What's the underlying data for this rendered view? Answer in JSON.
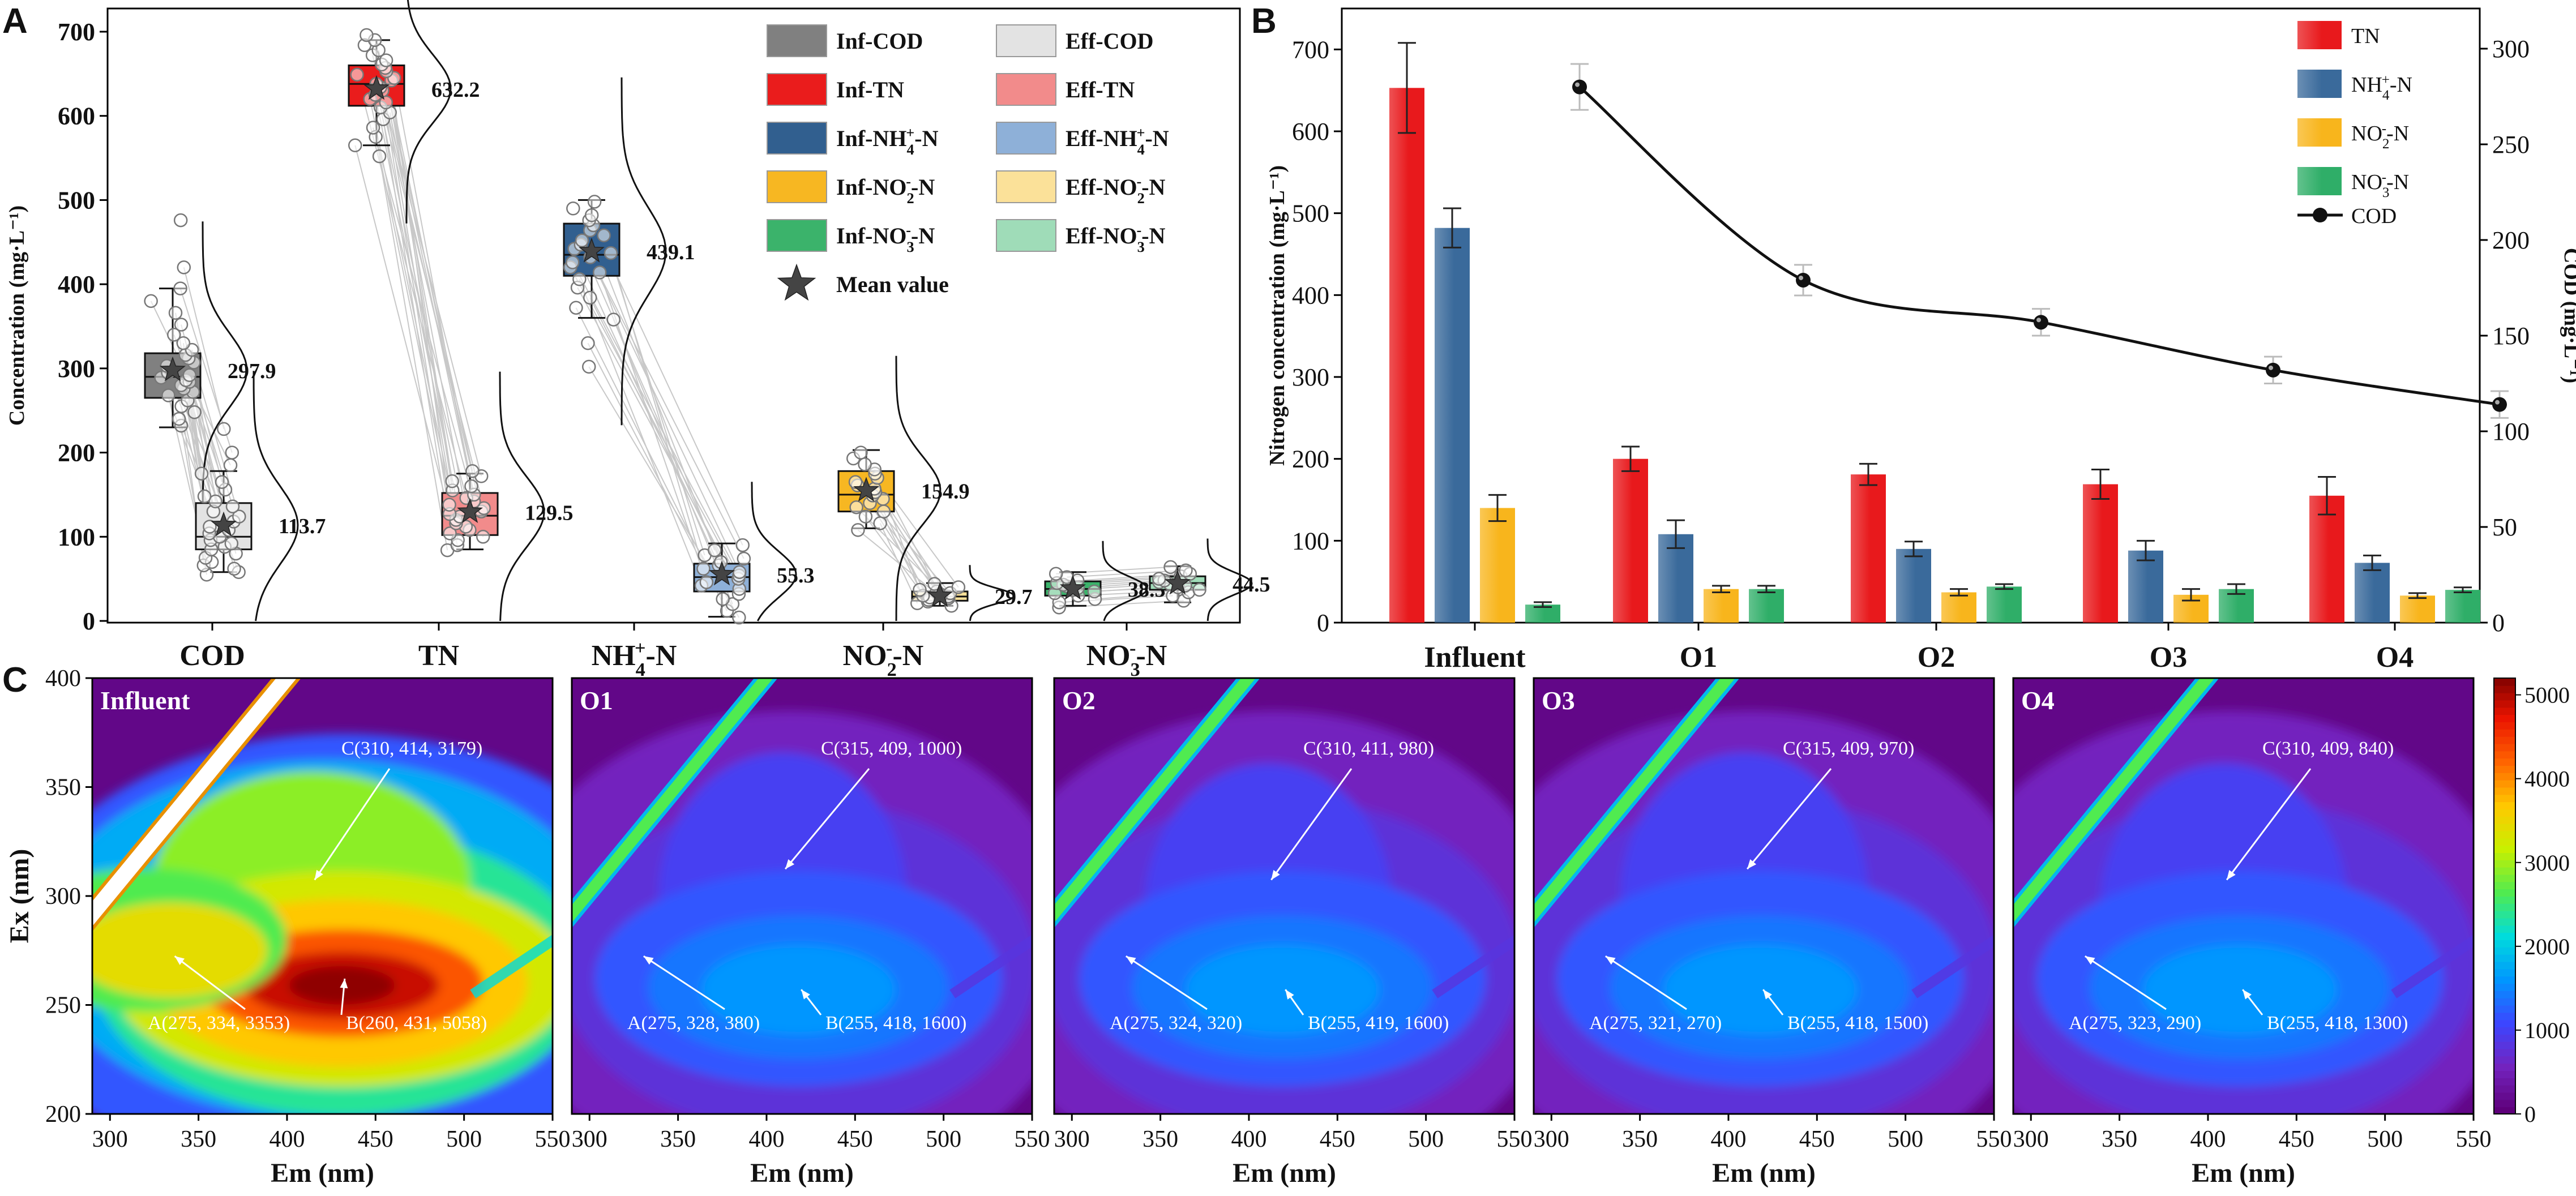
{
  "figure_labels": {
    "a": "A",
    "b": "B",
    "c": "C"
  },
  "chart_data": [
    {
      "type": "box",
      "panel": "A",
      "ylabel": "Concentration (mg·L⁻¹)",
      "ylim": [
        0,
        700
      ],
      "yticks": [
        0,
        100,
        200,
        300,
        400,
        500,
        600,
        700
      ],
      "groups": [
        "COD",
        "TN",
        "NH4+-N",
        "NO2--N",
        "NO3--N"
      ],
      "group_labels": [
        {
          "base": "COD",
          "sup": "",
          "sub": "",
          "tail": ""
        },
        {
          "base": "TN",
          "sup": "",
          "sub": "",
          "tail": ""
        },
        {
          "base": "NH",
          "sub": "4",
          "sup": "+",
          "tail": "-N"
        },
        {
          "base": "NO",
          "sub": "2",
          "sup": "-",
          "tail": "-N"
        },
        {
          "base": "NO",
          "sub": "3",
          "sup": "-",
          "tail": "-N"
        }
      ],
      "boxes": [
        {
          "name": "Inf-COD",
          "group": "COD",
          "color": "#808080",
          "q1": 265,
          "median": 290,
          "q3": 318,
          "whisker_low": 230,
          "whisker_high": 395,
          "mean": 297.9,
          "mean_label": "297.9",
          "points": [
            232,
            240,
            248,
            255,
            262,
            268,
            272,
            276,
            280,
            284,
            286,
            289,
            292,
            295,
            298,
            303,
            307,
            312,
            316,
            322,
            330,
            340,
            352,
            366,
            380,
            395,
            420,
            476
          ]
        },
        {
          "name": "Eff-COD",
          "group": "COD",
          "color": "#e3e3e3",
          "q1": 85,
          "median": 100,
          "q3": 140,
          "whisker_low": 58,
          "whisker_high": 178,
          "mean": 113.7,
          "mean_label": "113.7",
          "points": [
            55,
            58,
            62,
            66,
            70,
            75,
            80,
            85,
            88,
            92,
            96,
            100,
            104,
            108,
            112,
            118,
            124,
            130,
            136,
            142,
            148,
            156,
            165,
            175,
            185,
            200,
            228
          ]
        },
        {
          "name": "Inf-TN",
          "group": "TN",
          "color": "#ea1c1c",
          "q1": 612,
          "median": 638,
          "q3": 660,
          "whisker_low": 565,
          "whisker_high": 690,
          "mean": 632.2,
          "mean_label": "632.2",
          "points": [
            552,
            565,
            575,
            586,
            596,
            604,
            610,
            616,
            620,
            625,
            630,
            634,
            638,
            642,
            645,
            649,
            653,
            657,
            661,
            666,
            672,
            678,
            684,
            690,
            696
          ]
        },
        {
          "name": "Eff-TN",
          "group": "TN",
          "color": "#f28b8b",
          "q1": 102,
          "median": 125,
          "q3": 152,
          "whisker_low": 85,
          "whisker_high": 175,
          "mean": 129.5,
          "mean_label": "129.5",
          "points": [
            84,
            90,
            96,
            100,
            104,
            108,
            112,
            116,
            120,
            124,
            127,
            130,
            134,
            138,
            142,
            146,
            150,
            155,
            160,
            166,
            172,
            178
          ]
        },
        {
          "name": "Inf-NH4+-N",
          "group": "NH4+-N",
          "color": "#315f8f",
          "q1": 410,
          "median": 435,
          "q3": 472,
          "whisker_low": 360,
          "whisker_high": 500,
          "mean": 439.1,
          "mean_label": "439.1",
          "points": [
            302,
            330,
            358,
            372,
            384,
            396,
            406,
            414,
            420,
            426,
            432,
            437,
            442,
            447,
            452,
            458,
            464,
            470,
            476,
            482,
            490,
            498
          ]
        },
        {
          "name": "Eff-NH4+-N",
          "group": "NH4+-N",
          "color": "#8eb0d8",
          "q1": 35,
          "median": 52,
          "q3": 68,
          "whisker_low": 5,
          "whisker_high": 92,
          "mean": 55.3,
          "mean_label": "55.3",
          "points": [
            4,
            12,
            20,
            26,
            32,
            38,
            42,
            46,
            50,
            54,
            58,
            62,
            66,
            70,
            74,
            78,
            84,
            90
          ]
        },
        {
          "name": "Inf-NO2--N",
          "group": "NO2--N",
          "color": "#f7b722",
          "q1": 130,
          "median": 150,
          "q3": 178,
          "whisker_low": 110,
          "whisker_high": 203,
          "mean": 154.9,
          "mean_label": "154.9",
          "points": [
            108,
            116,
            124,
            130,
            135,
            140,
            145,
            149,
            153,
            157,
            161,
            165,
            170,
            175,
            180,
            186,
            193,
            200
          ]
        },
        {
          "name": "Eff-NO2--N",
          "group": "NO2--N",
          "color": "#fbe199",
          "q1": 24,
          "median": 29,
          "q3": 35,
          "whisker_low": 18,
          "whisker_high": 45,
          "mean": 29.7,
          "mean_label": "29.7",
          "points": [
            18,
            21,
            23,
            25,
            27,
            28,
            29,
            30,
            31,
            32,
            33,
            35,
            37,
            40,
            44
          ]
        },
        {
          "name": "Inf-NO3--N",
          "group": "NO3--N",
          "color": "#3bb36b",
          "q1": 30,
          "median": 38,
          "q3": 47,
          "whisker_low": 18,
          "whisker_high": 58,
          "mean": 38.3,
          "mean_label": "38.3",
          "points": [
            16,
            22,
            26,
            30,
            33,
            35,
            37,
            39,
            41,
            43,
            45,
            48,
            52,
            56
          ]
        },
        {
          "name": "Eff-NO3--N",
          "group": "NO3--N",
          "color": "#9fdcb8",
          "q1": 37,
          "median": 45,
          "q3": 53,
          "whisker_low": 22,
          "whisker_high": 65,
          "mean": 44.5,
          "mean_label": "44.5",
          "points": [
            24,
            30,
            34,
            37,
            40,
            42,
            44,
            46,
            48,
            50,
            53,
            56,
            60,
            64
          ]
        }
      ],
      "legend": [
        {
          "color": "#808080",
          "base": "Inf-COD",
          "sub": "",
          "sup": "",
          "tail": ""
        },
        {
          "color": "#e3e3e3",
          "base": "Eff-COD",
          "sub": "",
          "sup": "",
          "tail": ""
        },
        {
          "color": "#ea1c1c",
          "base": "Inf-TN",
          "sub": "",
          "sup": "",
          "tail": ""
        },
        {
          "color": "#f28b8b",
          "base": "Eff-TN",
          "sub": "",
          "sup": "",
          "tail": ""
        },
        {
          "color": "#315f8f",
          "base": "Inf-NH",
          "sub": "4",
          "sup": "+",
          "tail": "-N"
        },
        {
          "color": "#8eb0d8",
          "base": "Eff-NH",
          "sub": "4",
          "sup": "+",
          "tail": "-N"
        },
        {
          "color": "#f7b722",
          "base": "Inf-NO",
          "sub": "2",
          "sup": "-",
          "tail": "-N"
        },
        {
          "color": "#fbe199",
          "base": "Eff-NO",
          "sub": "2",
          "sup": "-",
          "tail": "-N"
        },
        {
          "color": "#3bb36b",
          "base": "Inf-NO",
          "sub": "3",
          "sup": "-",
          "tail": "-N"
        },
        {
          "color": "#9fdcb8",
          "base": "Eff-NO",
          "sub": "3",
          "sup": "-",
          "tail": "-N"
        }
      ],
      "legend_mean": "Mean value"
    },
    {
      "type": "bar+line",
      "panel": "B",
      "categories": [
        "Influent",
        "O1",
        "O2",
        "O3",
        "O4"
      ],
      "ylabel_left": "Nitrogen concentration (mg·L⁻¹)",
      "ylabel_right": "COD (mg·L⁻¹)",
      "ylim_left": [
        0,
        750
      ],
      "yticks_left": [
        0,
        100,
        200,
        300,
        400,
        500,
        600,
        700
      ],
      "ylim_right": [
        0,
        321
      ],
      "yticks_right": [
        0,
        50,
        100,
        150,
        200,
        250,
        300
      ],
      "series": [
        {
          "name": "TN",
          "label_base": "TN",
          "sub": "",
          "sup": "",
          "tail": "",
          "color": "#e8191c",
          "values": [
            653,
            200,
            181,
            169,
            155
          ],
          "errors": [
            55,
            15,
            13,
            18,
            23
          ]
        },
        {
          "name": "NH4+-N",
          "label_base": "NH",
          "sub": "4",
          "sup": "+",
          "tail": "-N",
          "color": "#3a6a9b",
          "values": [
            482,
            108,
            90,
            88,
            73
          ],
          "errors": [
            24,
            17,
            9,
            12,
            9
          ]
        },
        {
          "name": "NO2--N",
          "label_base": "NO",
          "sub": "2",
          "sup": "-",
          "tail": "-N",
          "color": "#f8b51c",
          "values": [
            140,
            41,
            37,
            34,
            33
          ],
          "errors": [
            16,
            4,
            4,
            7,
            3
          ]
        },
        {
          "name": "NO3--N",
          "label_base": "NO",
          "sub": "3",
          "sup": "-",
          "tail": "-N",
          "color": "#2fae68",
          "values": [
            22,
            41,
            44,
            41,
            40
          ],
          "errors": [
            3,
            4,
            3,
            6,
            3
          ]
        }
      ],
      "line": {
        "name": "COD",
        "label": "COD",
        "values": [
          280,
          179,
          157,
          132,
          114
        ],
        "errors": [
          12,
          8,
          7,
          7,
          7
        ],
        "axis": "right"
      }
    },
    {
      "type": "heatmap",
      "panel": "C",
      "xlabel": "Em (nm)",
      "ylabel": "Ex (nm)",
      "xlim": [
        290,
        550
      ],
      "xticks": [
        300,
        350,
        400,
        450,
        500,
        550
      ],
      "ylim": [
        200,
        400
      ],
      "yticks": [
        200,
        250,
        300,
        350,
        400
      ],
      "colorbar": {
        "min": 0,
        "max": 5200,
        "ticks": [
          0,
          1000,
          2000,
          3000,
          4000,
          5000
        ]
      },
      "panels": [
        {
          "title": "Influent",
          "peaks": [
            {
              "label": "A(275, 334, 3353)",
              "ex": 275,
              "em": 334,
              "intensity": 3353
            },
            {
              "label": "B(260, 431, 5058)",
              "ex": 260,
              "em": 431,
              "intensity": 5058
            },
            {
              "label": "C(310, 414, 3179)",
              "ex": 310,
              "em": 414,
              "intensity": 3179
            }
          ]
        },
        {
          "title": "O1",
          "peaks": [
            {
              "label": "A(275, 328, 380)",
              "ex": 275,
              "em": 328,
              "intensity": 380
            },
            {
              "label": "B(255, 418, 1600)",
              "ex": 255,
              "em": 418,
              "intensity": 1600
            },
            {
              "label": "C(315, 409, 1000)",
              "ex": 315,
              "em": 409,
              "intensity": 1000
            }
          ]
        },
        {
          "title": "O2",
          "peaks": [
            {
              "label": "A(275, 324, 320)",
              "ex": 275,
              "em": 324,
              "intensity": 320
            },
            {
              "label": "B(255, 419, 1600)",
              "ex": 255,
              "em": 419,
              "intensity": 1600
            },
            {
              "label": "C(310, 411, 980)",
              "ex": 310,
              "em": 411,
              "intensity": 980
            }
          ]
        },
        {
          "title": "O3",
          "peaks": [
            {
              "label": "A(275, 321, 270)",
              "ex": 275,
              "em": 321,
              "intensity": 270
            },
            {
              "label": "B(255, 418, 1500)",
              "ex": 255,
              "em": 418,
              "intensity": 1500
            },
            {
              "label": "C(315, 409, 970)",
              "ex": 315,
              "em": 409,
              "intensity": 970
            }
          ]
        },
        {
          "title": "O4",
          "peaks": [
            {
              "label": "A(275, 323, 290)",
              "ex": 275,
              "em": 323,
              "intensity": 290
            },
            {
              "label": "B(255, 418, 1300)",
              "ex": 255,
              "em": 418,
              "intensity": 1300
            },
            {
              "label": "C(310, 409, 840)",
              "ex": 310,
              "em": 409,
              "intensity": 840
            }
          ]
        }
      ]
    }
  ]
}
